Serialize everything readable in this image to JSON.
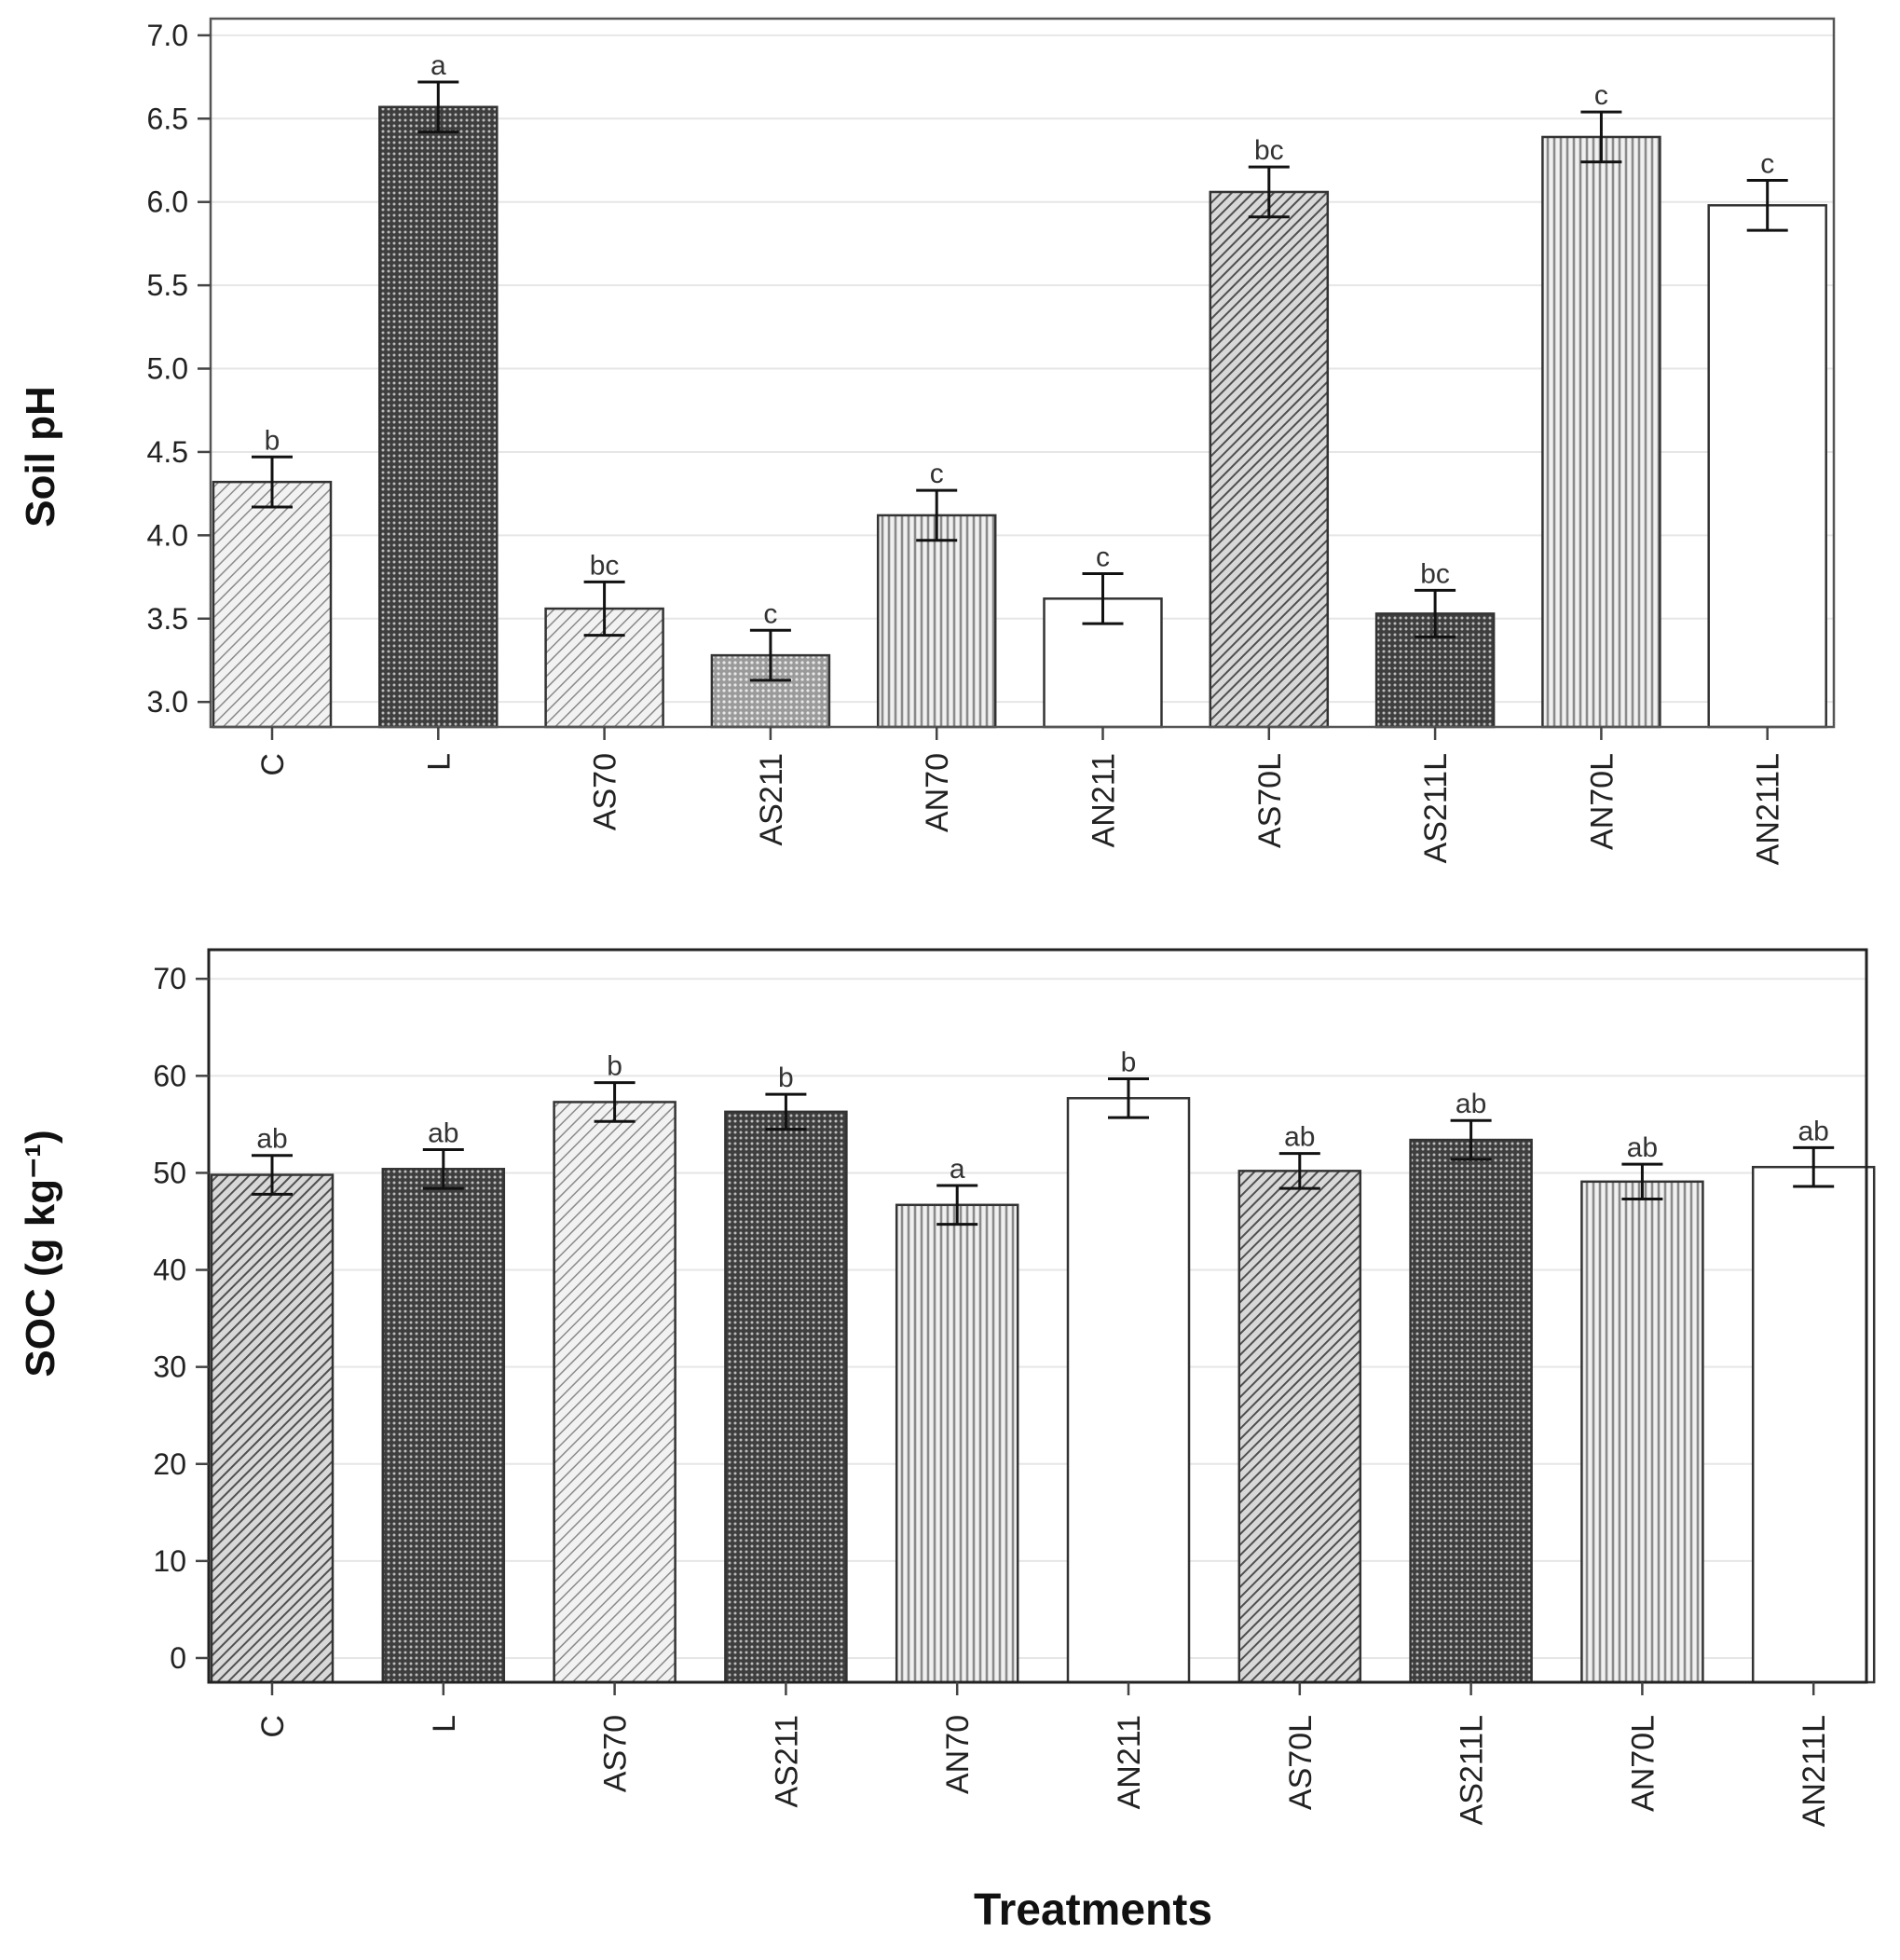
{
  "chart_data": [
    {
      "type": "bar",
      "ylabel": "Soil pH",
      "xlabel": "",
      "ylim": [
        2.85,
        7.1
      ],
      "yticks": [
        3.0,
        3.5,
        4.0,
        4.5,
        5.0,
        5.5,
        6.0,
        6.5,
        7.0
      ],
      "ytick_labels": [
        "3.0",
        "3.5",
        "4.0",
        "4.5",
        "5.0",
        "5.5",
        "6.0",
        "6.5",
        "7.0"
      ],
      "grid": true,
      "categories": [
        "C",
        "L",
        "AS70",
        "AS211",
        "AN70",
        "AN211",
        "AS70L",
        "AS211L",
        "AN70L",
        "AN211L"
      ],
      "values": [
        4.32,
        6.57,
        3.56,
        3.28,
        4.12,
        3.62,
        6.06,
        3.53,
        6.39,
        5.98
      ],
      "errors": [
        0.15,
        0.15,
        0.16,
        0.15,
        0.15,
        0.15,
        0.15,
        0.14,
        0.15,
        0.15
      ],
      "significance": [
        "b",
        "a",
        "bc",
        "c",
        "c",
        "c",
        "bc",
        "bc",
        "c",
        "c"
      ],
      "patterns": [
        "diag-light",
        "dots-dark",
        "diag-light",
        "dots-light",
        "vertical",
        "none",
        "diag-dark",
        "dots-dark",
        "vertical",
        "none"
      ]
    },
    {
      "type": "bar",
      "ylabel": "SOC (g kg⁻¹)",
      "xlabel": "Treatments",
      "ylim": [
        -2.5,
        73
      ],
      "yticks": [
        0,
        10,
        20,
        30,
        40,
        50,
        60,
        70
      ],
      "ytick_labels": [
        "0",
        "10",
        "20",
        "30",
        "40",
        "50",
        "60",
        "70"
      ],
      "grid": true,
      "categories": [
        "C",
        "L",
        "AS70",
        "AS211",
        "AN70",
        "AN211",
        "AS70L",
        "AS211L",
        "AN70L",
        "AN211L"
      ],
      "values": [
        49.8,
        50.4,
        57.3,
        56.3,
        46.7,
        57.7,
        50.2,
        53.4,
        49.1,
        50.6
      ],
      "errors": [
        2.0,
        2.0,
        2.0,
        1.8,
        2.0,
        2.0,
        1.8,
        2.0,
        1.8,
        2.0
      ],
      "significance": [
        "ab",
        "ab",
        "b",
        "b",
        "a",
        "b",
        "ab",
        "ab",
        "ab",
        "ab"
      ],
      "patterns": [
        "diag-dark",
        "dots-dark",
        "diag-light",
        "dots-dark",
        "vertical",
        "none",
        "diag-dark",
        "dots-dark",
        "vertical",
        "none"
      ]
    }
  ]
}
